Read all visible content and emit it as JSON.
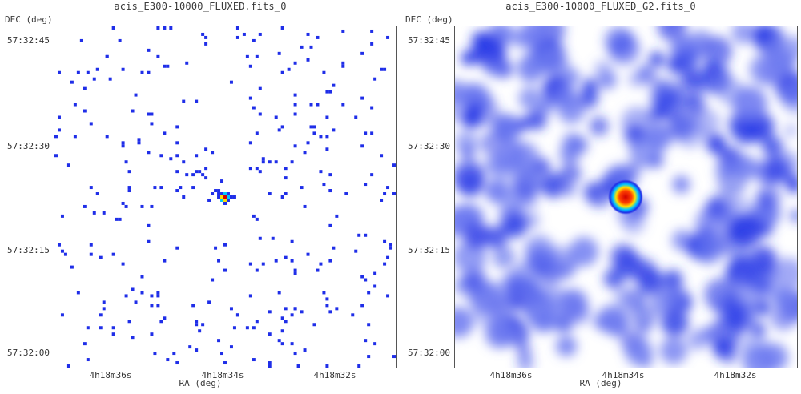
{
  "panels": [
    {
      "title": "acis_E300-10000_FLUXED.fits_0",
      "ylabel": "DEC (deg)",
      "xlabel": "RA (deg)",
      "yticks": [
        "57:32:45",
        "57:32:30",
        "57:32:15",
        "57:32:00"
      ],
      "xticks": [
        "4h18m36s",
        "4h18m34s",
        "4h18m32s"
      ],
      "style": "raw"
    },
    {
      "title": "acis_E300-10000_FLUXED_G2.fits_0",
      "ylabel": "DEC (deg)",
      "xlabel": "RA (deg)",
      "yticks": [
        "57:32:45",
        "57:32:30",
        "57:32:15",
        "57:32:00"
      ],
      "xticks": [
        "4h18m36s",
        "4h18m34s",
        "4h18m32s"
      ],
      "style": "smoothed"
    }
  ],
  "colormap": {
    "background": "#ffffff",
    "low": "#1f2ee8",
    "mid": "#00c8ff",
    "high": "#ffe000",
    "peak": "#d00000"
  }
}
